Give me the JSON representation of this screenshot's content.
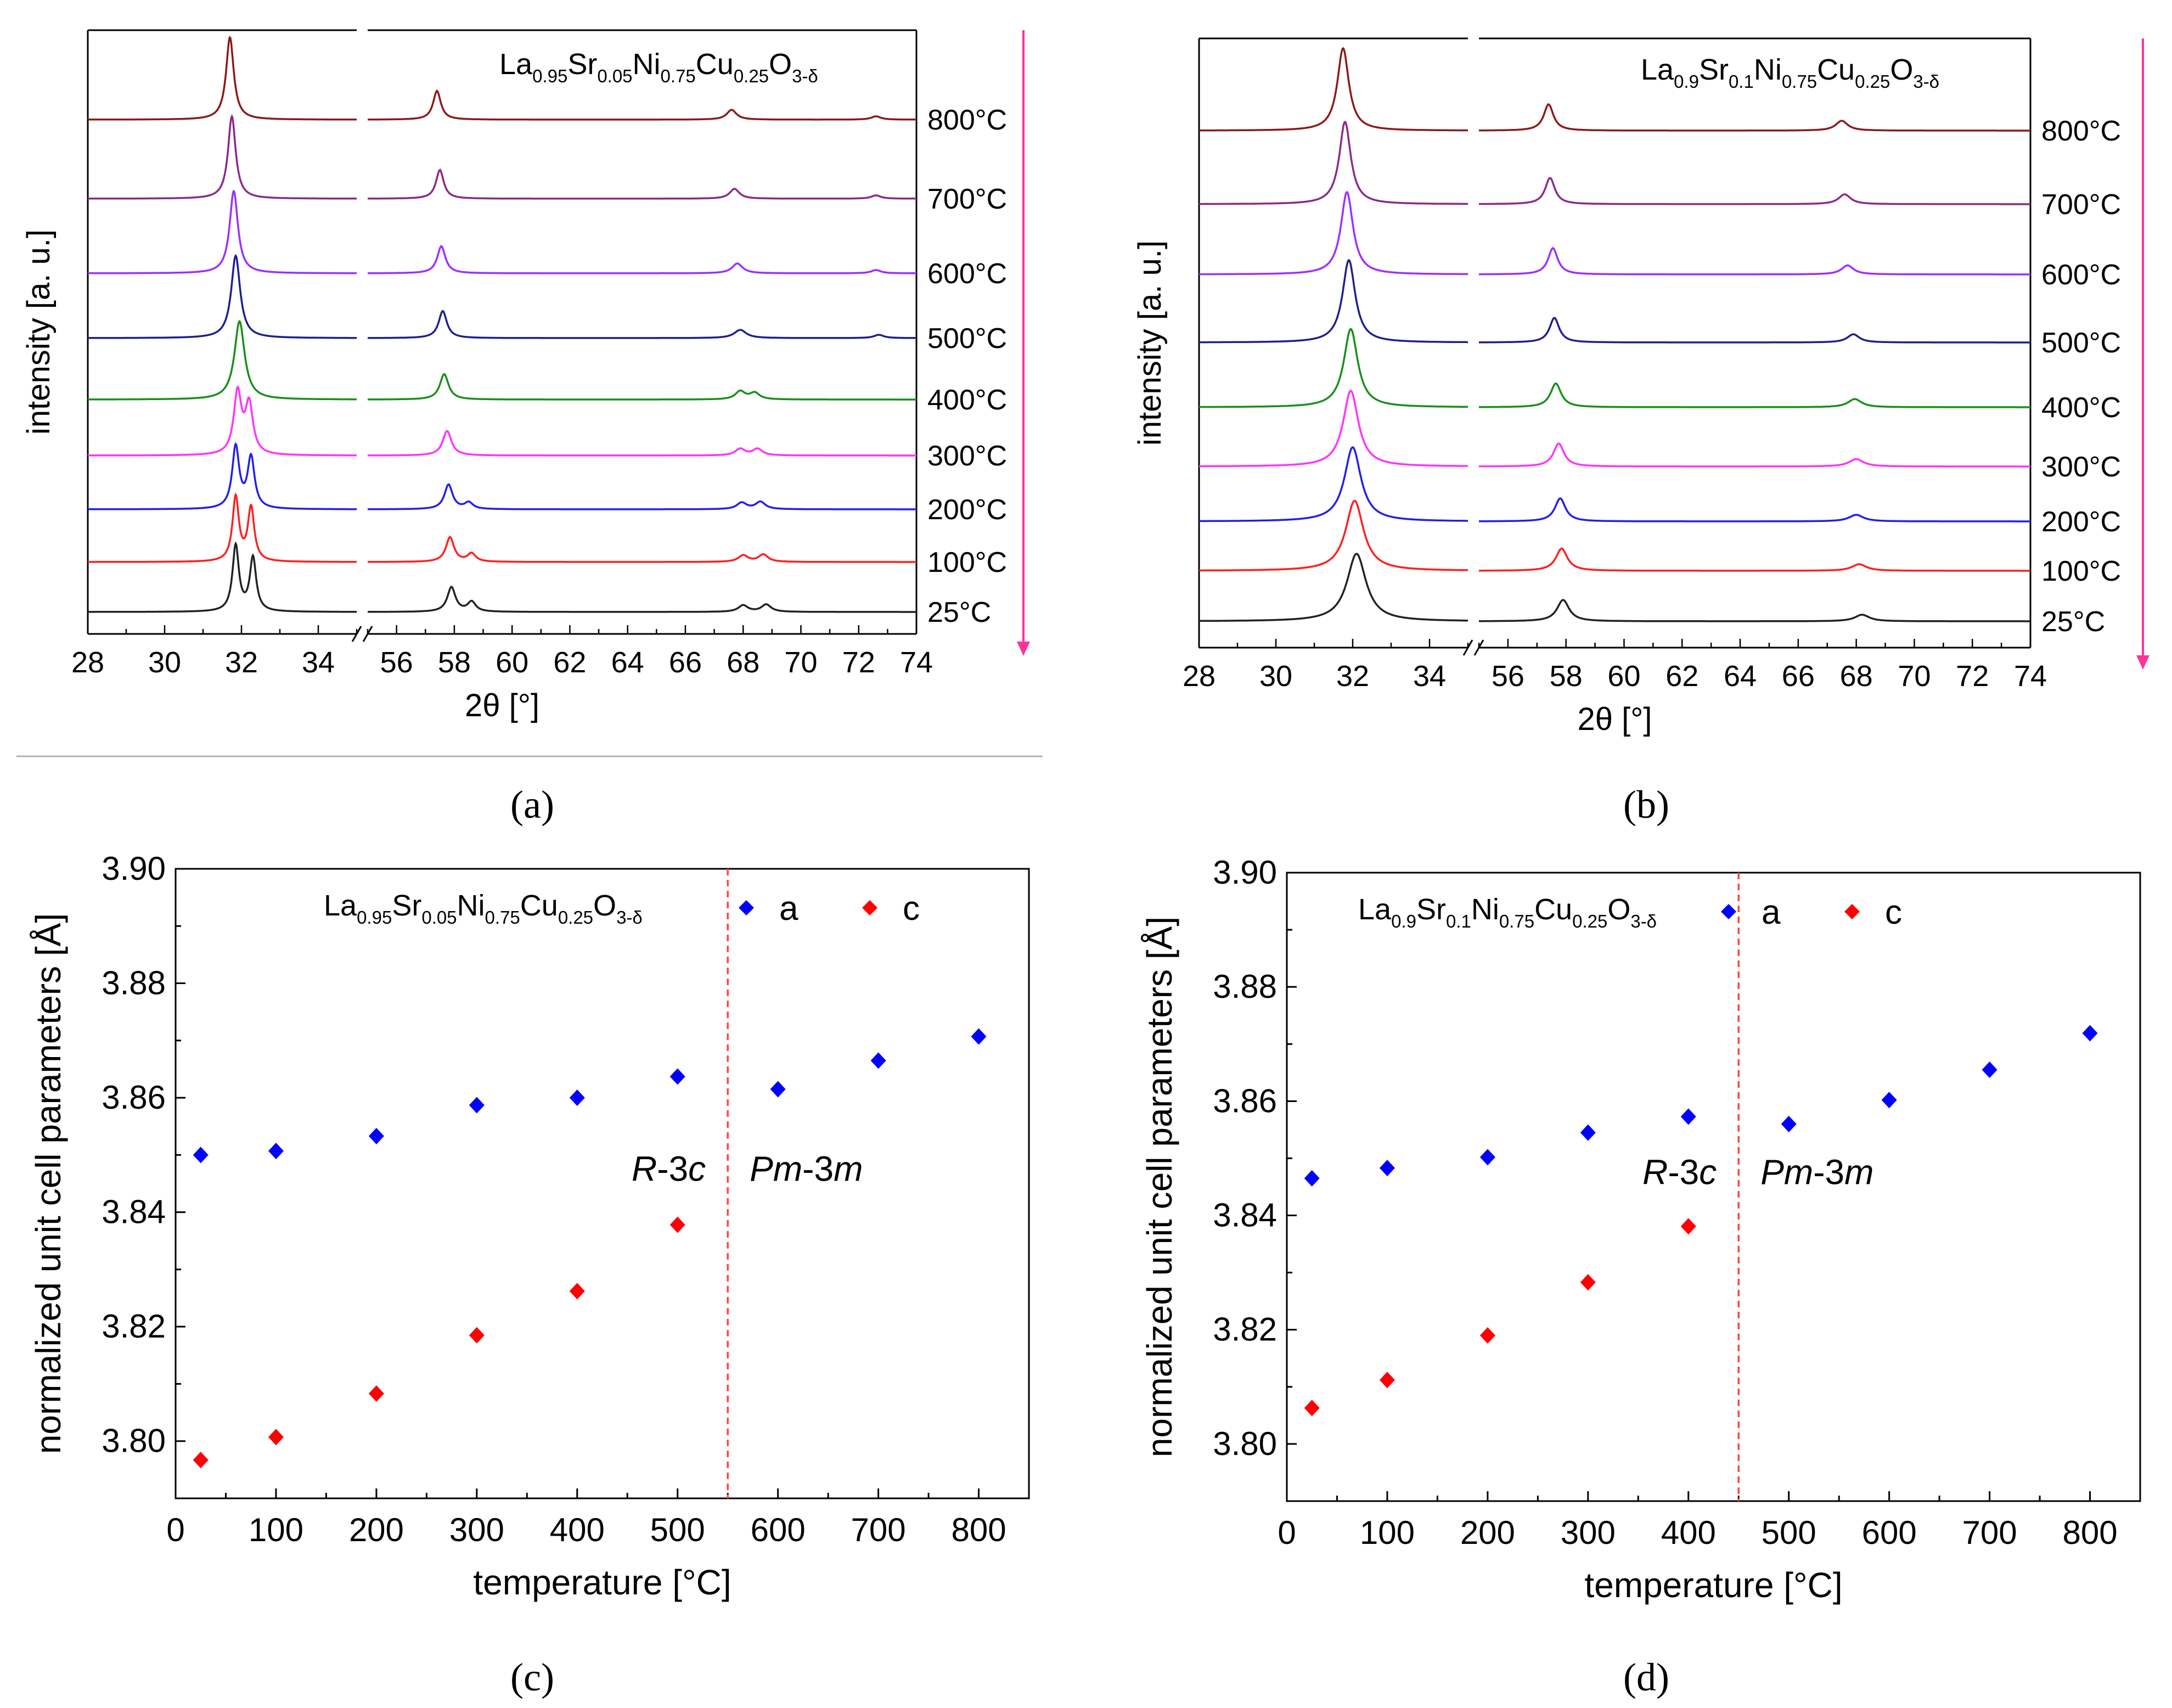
{
  "figure": {
    "colors": {
      "axis": "#000000",
      "series_a": "#0000ff",
      "series_c": "#ff0000",
      "phase_line": "#ff4444",
      "temp_arrow": "#ff3399",
      "divider": "#b0b0b0"
    },
    "temperature_colors": {
      "800": "#8b1a1a",
      "700": "#8b2a8b",
      "600": "#9b30ff",
      "500": "#1f1f8f",
      "400": "#1a8f1a",
      "300": "#ff33ff",
      "200": "#2020ee",
      "100": "#ff2020",
      "25": "#222222"
    }
  },
  "panels": {
    "a": {
      "caption": "(a)"
    },
    "b": {
      "caption": "(b)"
    },
    "c": {
      "caption": "(c)"
    },
    "d": {
      "caption": "(d)"
    }
  },
  "chart_data": [
    {
      "id": "a",
      "type": "line",
      "title": {
        "base": [
          "La",
          "Sr",
          "Ni",
          "Cu",
          "O"
        ],
        "subs": [
          "0.95",
          "0.05",
          "0.75",
          "0.25",
          "3-δ"
        ]
      },
      "xlabel": "2θ [°]",
      "ylabel": "intensity [a. u.]",
      "x_segments": [
        {
          "xlim": [
            28,
            35
          ],
          "ticks": [
            "28",
            "30",
            "32",
            "34"
          ]
        },
        {
          "xlim": [
            55,
            74
          ],
          "ticks": [
            "56",
            "58",
            "60",
            "62",
            "64",
            "66",
            "68",
            "70",
            "72",
            "74"
          ]
        }
      ],
      "axis_break": "//",
      "series": [
        {
          "name": "800°C",
          "peaks": [
            [
              31.7,
              1.0,
              0.12
            ],
            [
              57.4,
              0.35,
              0.16
            ],
            [
              67.6,
              0.12,
              0.2
            ],
            [
              72.6,
              0.04,
              0.2
            ]
          ]
        },
        {
          "name": "700°C",
          "peaks": [
            [
              31.75,
              1.0,
              0.12
            ],
            [
              57.5,
              0.35,
              0.16
            ],
            [
              67.7,
              0.12,
              0.2
            ],
            [
              72.6,
              0.04,
              0.2
            ]
          ]
        },
        {
          "name": "600°C",
          "peaks": [
            [
              31.8,
              1.0,
              0.13
            ],
            [
              57.55,
              0.33,
              0.17
            ],
            [
              67.8,
              0.12,
              0.22
            ],
            [
              72.6,
              0.04,
              0.2
            ]
          ]
        },
        {
          "name": "500°C",
          "peaks": [
            [
              31.85,
              1.0,
              0.14
            ],
            [
              57.6,
              0.33,
              0.17
            ],
            [
              67.9,
              0.1,
              0.25
            ],
            [
              72.7,
              0.04,
              0.2
            ]
          ]
        },
        {
          "name": "400°C",
          "peaks": [
            [
              31.95,
              0.95,
              0.16
            ],
            [
              57.65,
              0.31,
              0.18
            ],
            [
              67.9,
              0.1,
              0.2
            ],
            [
              68.4,
              0.08,
              0.2
            ]
          ]
        },
        {
          "name": "300°C",
          "peaks": [
            [
              31.9,
              0.75,
              0.12
            ],
            [
              32.2,
              0.6,
              0.12
            ],
            [
              57.75,
              0.3,
              0.18
            ],
            [
              67.9,
              0.08,
              0.2
            ],
            [
              68.5,
              0.08,
              0.2
            ]
          ]
        },
        {
          "name": "200°C",
          "peaks": [
            [
              31.85,
              0.75,
              0.11
            ],
            [
              32.25,
              0.62,
              0.11
            ],
            [
              57.8,
              0.3,
              0.17
            ],
            [
              58.5,
              0.08,
              0.17
            ],
            [
              67.95,
              0.08,
              0.2
            ],
            [
              68.6,
              0.09,
              0.2
            ]
          ]
        },
        {
          "name": "100°C",
          "peaks": [
            [
              31.85,
              0.78,
              0.1
            ],
            [
              32.25,
              0.65,
              0.1
            ],
            [
              57.85,
              0.3,
              0.17
            ],
            [
              58.6,
              0.1,
              0.17
            ],
            [
              68.0,
              0.08,
              0.2
            ],
            [
              68.7,
              0.09,
              0.2
            ]
          ]
        },
        {
          "name": "25°C",
          "peaks": [
            [
              31.85,
              0.8,
              0.1
            ],
            [
              32.3,
              0.65,
              0.1
            ],
            [
              57.9,
              0.3,
              0.17
            ],
            [
              58.6,
              0.12,
              0.17
            ],
            [
              68.0,
              0.08,
              0.2
            ],
            [
              68.8,
              0.09,
              0.2
            ]
          ]
        }
      ]
    },
    {
      "id": "b",
      "type": "line",
      "title": {
        "base": [
          "La",
          "Sr",
          "Ni",
          "Cu",
          "O"
        ],
        "subs": [
          "0.9",
          "0.1",
          "0.75",
          "0.25",
          "3-δ"
        ]
      },
      "xlabel": "2θ [°]",
      "ylabel": "intensity [a. u.]",
      "x_segments": [
        {
          "xlim": [
            28,
            35
          ],
          "ticks": [
            "28",
            "30",
            "32",
            "34"
          ]
        },
        {
          "xlim": [
            55,
            74
          ],
          "ticks": [
            "56",
            "58",
            "60",
            "62",
            "64",
            "66",
            "68",
            "70",
            "72",
            "74"
          ]
        }
      ],
      "axis_break": "//",
      "series": [
        {
          "name": "800°C",
          "peaks": [
            [
              31.75,
              1.0,
              0.18
            ],
            [
              57.4,
              0.32,
              0.2
            ],
            [
              67.5,
              0.12,
              0.25
            ]
          ]
        },
        {
          "name": "700°C",
          "peaks": [
            [
              31.8,
              1.0,
              0.18
            ],
            [
              57.45,
              0.32,
              0.2
            ],
            [
              67.6,
              0.12,
              0.25
            ]
          ]
        },
        {
          "name": "600°C",
          "peaks": [
            [
              31.85,
              1.0,
              0.19
            ],
            [
              57.55,
              0.32,
              0.2
            ],
            [
              67.7,
              0.11,
              0.25
            ]
          ]
        },
        {
          "name": "500°C",
          "peaks": [
            [
              31.9,
              1.0,
              0.2
            ],
            [
              57.6,
              0.3,
              0.2
            ],
            [
              67.9,
              0.1,
              0.25
            ]
          ]
        },
        {
          "name": "400°C",
          "peaks": [
            [
              31.95,
              0.95,
              0.22
            ],
            [
              57.65,
              0.29,
              0.22
            ],
            [
              67.95,
              0.1,
              0.28
            ]
          ]
        },
        {
          "name": "300°C",
          "peaks": [
            [
              31.95,
              0.92,
              0.24
            ],
            [
              57.75,
              0.28,
              0.22
            ],
            [
              68.0,
              0.09,
              0.3
            ]
          ]
        },
        {
          "name": "200°C",
          "peaks": [
            [
              32.0,
              0.9,
              0.26
            ],
            [
              57.8,
              0.28,
              0.22
            ],
            [
              68.0,
              0.08,
              0.3
            ]
          ]
        },
        {
          "name": "100°C",
          "peaks": [
            [
              32.05,
              0.85,
              0.28
            ],
            [
              57.85,
              0.27,
              0.24
            ],
            [
              68.1,
              0.08,
              0.3
            ]
          ]
        },
        {
          "name": "25°C",
          "peaks": [
            [
              32.1,
              0.82,
              0.3
            ],
            [
              57.9,
              0.26,
              0.25
            ],
            [
              68.2,
              0.08,
              0.3
            ]
          ]
        }
      ]
    },
    {
      "id": "c",
      "type": "scatter",
      "title": {
        "base": [
          "La",
          "Sr",
          "Ni",
          "Cu",
          "O"
        ],
        "subs": [
          "0.95",
          "0.05",
          "0.75",
          "0.25",
          "3-δ"
        ]
      },
      "xlabel": "temperature [°C]",
      "ylabel": "normalized unit cell parameters [Å]",
      "xlim": [
        0,
        850
      ],
      "ylim": [
        3.79,
        3.9
      ],
      "xticks": [
        "0",
        "100",
        "200",
        "300",
        "400",
        "500",
        "600",
        "700",
        "800"
      ],
      "yticks": [
        "3.80",
        "3.82",
        "3.84",
        "3.86",
        "3.88",
        "3.90"
      ],
      "phase_boundary": 550,
      "phase_left": {
        "italic": "R",
        "rest": "-3",
        "italic2": "c"
      },
      "phase_right": {
        "italic": "Pm",
        "rest": "-3",
        "italic2": "m"
      },
      "series": [
        {
          "name": "a",
          "x": [
            25,
            100,
            200,
            300,
            400,
            500,
            600,
            700,
            800
          ],
          "y": [
            3.85,
            3.8507,
            3.8533,
            3.8587,
            3.86,
            3.8637,
            3.8615,
            3.8665,
            3.8707
          ]
        },
        {
          "name": "c",
          "x": [
            25,
            100,
            200,
            300,
            400,
            500
          ],
          "y": [
            3.7967,
            3.8007,
            3.8083,
            3.8185,
            3.8262,
            3.8378
          ]
        }
      ],
      "legend": [
        "a",
        "c"
      ]
    },
    {
      "id": "d",
      "type": "scatter",
      "title": {
        "base": [
          "La",
          "Sr",
          "Ni",
          "Cu",
          "O"
        ],
        "subs": [
          "0.9",
          "0.1",
          "0.75",
          "0.25",
          "3-δ"
        ]
      },
      "xlabel": "temperature [°C]",
      "ylabel": "normalized unit cell parameters [Å]",
      "xlim": [
        0,
        850
      ],
      "ylim": [
        3.79,
        3.9
      ],
      "xticks": [
        "0",
        "100",
        "200",
        "300",
        "400",
        "500",
        "600",
        "700",
        "800"
      ],
      "yticks": [
        "3.80",
        "3.82",
        "3.84",
        "3.86",
        "3.88",
        "3.90"
      ],
      "phase_boundary": 450,
      "phase_left": {
        "italic": "R",
        "rest": "-3",
        "italic2": "c"
      },
      "phase_right": {
        "italic": "Pm",
        "rest": "-3",
        "italic2": "m"
      },
      "series": [
        {
          "name": "a",
          "x": [
            25,
            100,
            200,
            300,
            400,
            500,
            600,
            700,
            800
          ],
          "y": [
            3.8465,
            3.8483,
            3.8502,
            3.8545,
            3.8573,
            3.856,
            3.8602,
            3.8655,
            3.8719
          ]
        },
        {
          "name": "c",
          "x": [
            25,
            100,
            200,
            300,
            400
          ],
          "y": [
            3.8063,
            3.8112,
            3.819,
            3.8283,
            3.8381
          ]
        }
      ],
      "legend": [
        "a",
        "c"
      ]
    }
  ]
}
